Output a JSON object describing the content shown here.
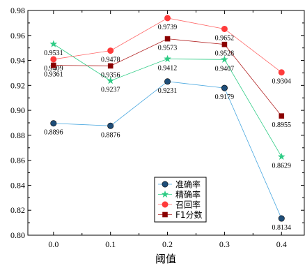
{
  "chart_data": {
    "type": "line",
    "title": "",
    "xlabel": "阈值",
    "ylabel": "",
    "x": [
      0.0,
      0.1,
      0.2,
      0.3,
      0.4
    ],
    "x_tick_labels": [
      "0.0",
      "0.1",
      "0.2",
      "0.3",
      "0.4"
    ],
    "xlim": [
      -0.045,
      0.44
    ],
    "ylim": [
      0.8,
      0.98
    ],
    "y_ticks": [
      0.8,
      0.82,
      0.84,
      0.86,
      0.88,
      0.9,
      0.92,
      0.94,
      0.96,
      0.98
    ],
    "y_tick_labels": [
      "0.80",
      "0.82",
      "0.84",
      "0.86",
      "0.88",
      "0.90",
      "0.92",
      "0.94",
      "0.96",
      "0.98"
    ],
    "grid": false,
    "legend_position": "bottom-right",
    "series": [
      {
        "name": "准确率",
        "values": [
          0.8896,
          0.8876,
          0.9231,
          0.9179,
          0.8134
        ],
        "labels": [
          "0.8896",
          "0.8876",
          "0.9231",
          "0.9179",
          "0.8134"
        ],
        "color": "#1f4e79",
        "line_color": "#4aa8e0",
        "marker": "circle"
      },
      {
        "name": "精确率",
        "values": [
          0.9531,
          0.9237,
          0.9412,
          0.9407,
          0.8629
        ],
        "labels": [
          "0.9531",
          "0.9237",
          "0.9412",
          "0.9407",
          "0.8629"
        ],
        "color": "#2ecc85",
        "line_color": "#2ecc85",
        "marker": "star"
      },
      {
        "name": "召回率",
        "values": [
          0.9409,
          0.9478,
          0.9739,
          0.9652,
          0.9304
        ],
        "labels": [
          "0.9409",
          "0.9478",
          "0.9739",
          "0.9652",
          "0.9304"
        ],
        "color": "#ff3b3b",
        "line_color": "#ff6666",
        "marker": "open-circle"
      },
      {
        "name": "F1分数",
        "values": [
          0.9361,
          0.9356,
          0.9573,
          0.9528,
          0.8955
        ],
        "labels": [
          "0.9361",
          "0.9356",
          "0.9573",
          "0.9528",
          "0.8955"
        ],
        "color": "#8b0000",
        "line_color": "#b22222",
        "marker": "square"
      }
    ]
  }
}
